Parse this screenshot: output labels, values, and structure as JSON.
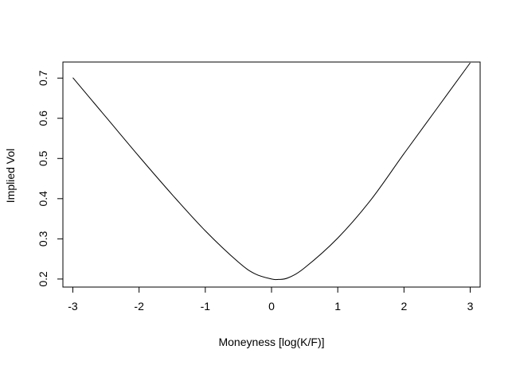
{
  "chart_data": {
    "type": "line",
    "title": "",
    "xlabel": "Moneyness [log(K/F)]",
    "ylabel": "Implied Vol",
    "xlim": [
      -3.15,
      3.15
    ],
    "ylim": [
      0.18,
      0.74
    ],
    "x_ticks": [
      -3,
      -2,
      -1,
      0,
      1,
      2,
      3
    ],
    "x_tick_labels": [
      "-3",
      "-2",
      "-1",
      "0",
      "1",
      "2",
      "3"
    ],
    "y_ticks": [
      0.2,
      0.3,
      0.4,
      0.5,
      0.6,
      0.7
    ],
    "y_tick_labels": [
      "0.2",
      "0.3",
      "0.4",
      "0.5",
      "0.6",
      "0.7"
    ],
    "grid": false,
    "legend": "none",
    "series": [
      {
        "color": "#000000",
        "x": [
          -3.0,
          -2.5,
          -2.0,
          -1.5,
          -1.0,
          -0.5,
          -0.25,
          0.0,
          0.1,
          0.25,
          0.5,
          1.0,
          1.5,
          2.0,
          2.5,
          3.0
        ],
        "y": [
          0.701,
          0.603,
          0.505,
          0.41,
          0.32,
          0.242,
          0.213,
          0.2,
          0.199,
          0.203,
          0.228,
          0.302,
          0.397,
          0.512,
          0.625,
          0.738
        ]
      }
    ]
  }
}
